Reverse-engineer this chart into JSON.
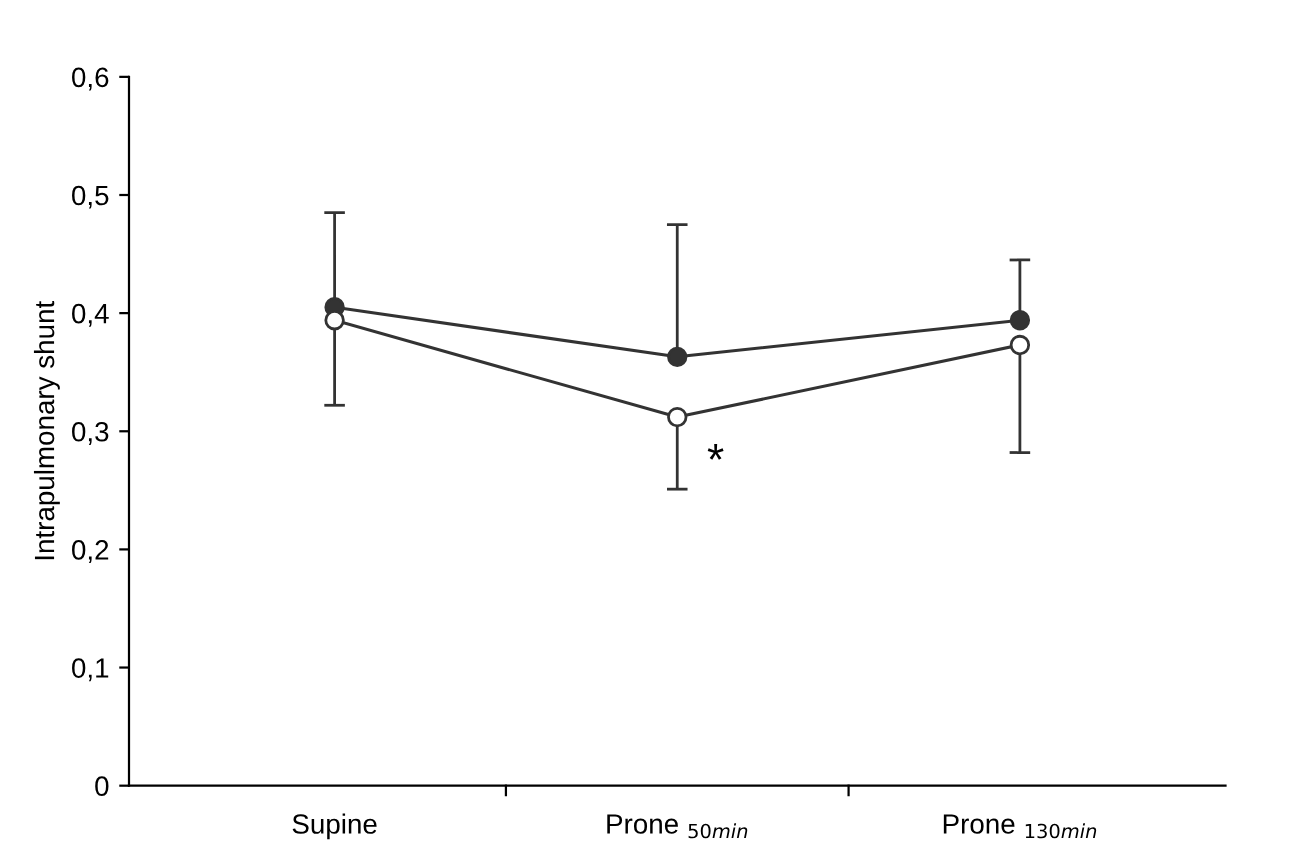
{
  "chart_data": {
    "type": "line",
    "ylabel": "Intrapulmonary shunt",
    "categories": [
      "Supine",
      "Prone $_{50min}$",
      "Prone $_{130min}$"
    ],
    "series": [
      {
        "color": "#333333",
        "marker": "circle",
        "values": [
          0.405,
          0.363,
          0.394
        ],
        "errors": [
          [
            0.405,
            0.485
          ],
          [
            0.363,
            0.475
          ],
          [
            0.394,
            0.445
          ]
        ]
      },
      {
        "color": "#333333",
        "colors": [
          "#ffffff",
          "#ffffff",
          "#ffffff"
        ],
        "marker": "circle",
        "values": [
          0.394,
          0.312,
          0.373
        ],
        "errors": [
          [
            0.322,
            0.394
          ],
          [
            0.251,
            0.312
          ],
          [
            0.282,
            0.373
          ]
        ]
      }
    ],
    "ylim": [
      0,
      0.6
    ],
    "yticks": [
      {
        "value": 0,
        "label": "0"
      },
      {
        "value": 0.1,
        "label": "0,1"
      },
      {
        "value": 0.2,
        "label": "0,2"
      },
      {
        "value": 0.3,
        "label": "0,3"
      },
      {
        "value": 0.4,
        "label": "0,4"
      },
      {
        "value": 0.5,
        "label": "0,5"
      },
      {
        "value": 0.6,
        "label": "0,6"
      }
    ],
    "annotations": [
      "*"
    ],
    "grid": false,
    "legend": false
  }
}
